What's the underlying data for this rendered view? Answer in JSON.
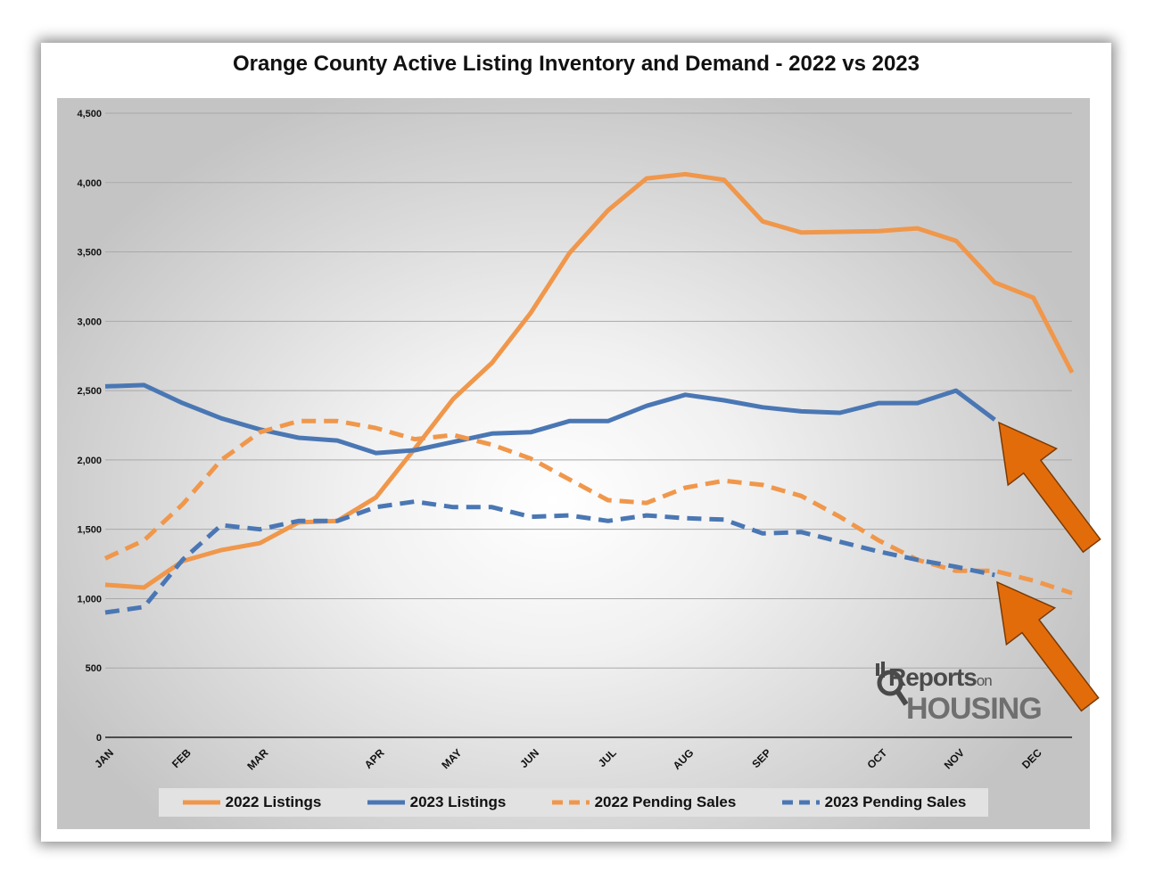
{
  "chart_data": {
    "type": "line",
    "title": "Orange County Active Listing Inventory and Demand - 2022 vs 2023",
    "ylim": [
      0,
      4500
    ],
    "y_ticks": [
      "0",
      "500",
      "1,000",
      "1,500",
      "2,000",
      "2,500",
      "3,000",
      "3,500",
      "4,000",
      "4,500"
    ],
    "x_tick_labels": [
      "JAN",
      "FEB",
      "MAR",
      "APR",
      "MAY",
      "JUN",
      "JUL",
      "AUG",
      "SEP",
      "OCT",
      "NOV",
      "DEC"
    ],
    "x_tick_positions": [
      0,
      2,
      4,
      7,
      9,
      11,
      13,
      15,
      17,
      20,
      22,
      24
    ],
    "x_max": 25,
    "series": [
      {
        "name": "2022 Listings",
        "color": "#F0974B",
        "dash": false,
        "values": [
          1100,
          1080,
          1270,
          1350,
          1400,
          1550,
          1560,
          1730,
          2080,
          2440,
          2700,
          3060,
          3490,
          3800,
          4030,
          4060,
          4020,
          3720,
          3640,
          3645,
          3650,
          3670,
          3580,
          3280,
          3170,
          2630
        ]
      },
      {
        "name": "2023 Listings",
        "color": "#4A77B4",
        "dash": false,
        "values": [
          2530,
          2540,
          2410,
          2300,
          2220,
          2160,
          2140,
          2050,
          2070,
          2130,
          2190,
          2200,
          2280,
          2280,
          2390,
          2470,
          2430,
          2380,
          2350,
          2340,
          2410,
          2410,
          2500,
          2290
        ]
      },
      {
        "name": "2022 Pending Sales",
        "color": "#F0974B",
        "dash": true,
        "values": [
          1290,
          1420,
          1680,
          2000,
          2200,
          2280,
          2280,
          2230,
          2150,
          2180,
          2110,
          2010,
          1860,
          1710,
          1690,
          1800,
          1850,
          1820,
          1740,
          1590,
          1420,
          1280,
          1200,
          1200,
          1130,
          1040
        ]
      },
      {
        "name": "2023 Pending Sales",
        "color": "#4A77B4",
        "dash": true,
        "values": [
          900,
          940,
          1280,
          1530,
          1500,
          1560,
          1560,
          1660,
          1700,
          1660,
          1660,
          1590,
          1600,
          1560,
          1600,
          1580,
          1570,
          1470,
          1480,
          1410,
          1340,
          1280,
          1230,
          1170
        ]
      }
    ]
  },
  "logo": {
    "top": "Reports",
    "on": "on",
    "bottom": "HOUSING"
  },
  "annotations": {
    "arrow_color": "#E36C0A"
  }
}
